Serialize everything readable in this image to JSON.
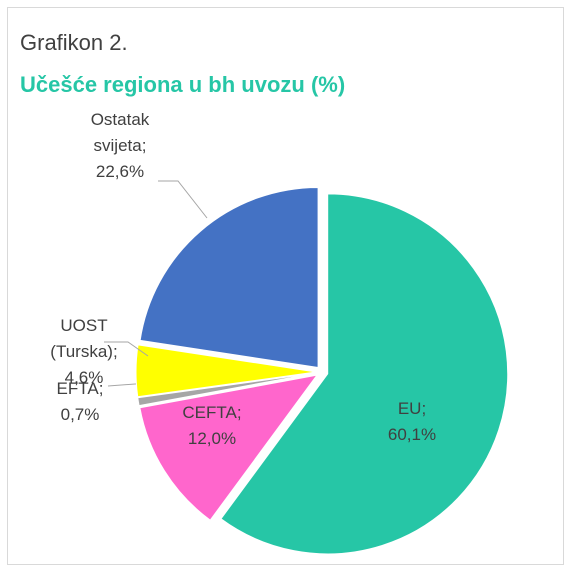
{
  "chart_data": {
    "type": "pie",
    "title": "Grafikon 2.",
    "subtitle": "Učešće regiona u bh uvozu (%)",
    "categories": [
      "EU",
      "CEFTA",
      "EFTA",
      "UOST (Turska)",
      "Ostatak svijeta"
    ],
    "values": [
      60.1,
      12.0,
      0.7,
      4.6,
      22.6
    ],
    "value_labels": [
      "60,1%",
      "12,0%",
      "0,7%",
      "4,6%",
      "22,6%"
    ],
    "label_separator": ";",
    "colors": [
      "#26c6a6",
      "#ff66cc",
      "#a6a6a6",
      "#ffff00",
      "#4472c4"
    ]
  }
}
